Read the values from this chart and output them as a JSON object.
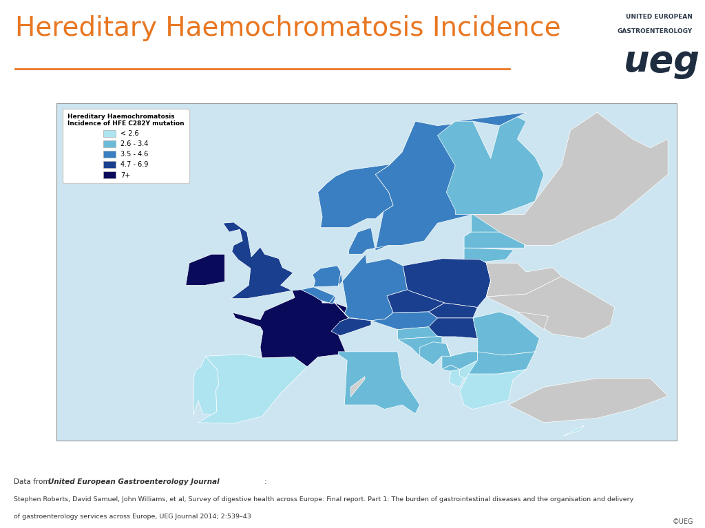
{
  "title": "Hereditary Haemochromatosis Incidence",
  "title_color": "#E87722",
  "title_fontsize": 28,
  "background_color": "#ffffff",
  "legend_title_line1": "Hereditary Haemochromatosis",
  "legend_title_line2": "Incidence of HFE C282Y mutation",
  "legend_labels": [
    "< 2.6",
    "2.6 - 3.4",
    "3.5 - 4.6",
    "4.7 - 6.9",
    "7+"
  ],
  "legend_colors": [
    "#aee4f0",
    "#6bbbd8",
    "#3a7fc1",
    "#1a3f8f",
    "#0a0a5a"
  ],
  "ueg_text_line1": "UNITED EUROPEAN",
  "ueg_text_line2": "GASTROENTEROLOGY",
  "ueg_logo_text": "ueg",
  "footer_prefix": "Data from ",
  "footer_journal": "United European Gastroenterology Journal",
  "footer_colon": ":",
  "footer_line2": "Stephen Roberts, David Samuel, John Williams, et al, Survey of digestive health across Europe: Final report. Part 1: The burden of gastrointestinal diseases and the organisation and delivery",
  "footer_line3": "of gastroenterology services across Europe, UEG Journal 2014; 2:539–43",
  "copyright_text": "©UEG",
  "country_colors": {
    "Ireland": "#0a0a5a",
    "United Kingdom": "#1a3f8f",
    "France": "#0a0a5a",
    "Norway": "#3a7fc1",
    "Sweden": "#3a7fc1",
    "Denmark": "#3a7fc1",
    "Finland": "#6bbbd8",
    "Iceland": "#6bbbd8",
    "Netherlands": "#3a7fc1",
    "Belgium": "#3a7fc1",
    "Luxembourg": "#3a7fc1",
    "Germany": "#3a7fc1",
    "Switzerland": "#1a3f8f",
    "Austria": "#3a7fc1",
    "Spain": "#aee4f0",
    "Portugal": "#aee4f0",
    "Italy": "#6bbbd8",
    "Greece": "#aee4f0",
    "Poland": "#1a3f8f",
    "Czech Republic": "#1a3f8f",
    "Czechia": "#1a3f8f",
    "Slovakia": "#1a3f8f",
    "Hungary": "#1a3f8f",
    "Romania": "#6bbbd8",
    "Bulgaria": "#6bbbd8",
    "Croatia": "#6bbbd8",
    "Slovenia": "#6bbbd8",
    "Bosnia and Herz.": "#6bbbd8",
    "Bosnia and Herzegovina": "#6bbbd8",
    "Serbia": "#6bbbd8",
    "Montenegro": "#6bbbd8",
    "Albania": "#aee4f0",
    "North Macedonia": "#aee4f0",
    "Macedonia": "#aee4f0",
    "Kosovo": "#aee4f0",
    "Estonia": "#6bbbd8",
    "Latvia": "#6bbbd8",
    "Lithuania": "#6bbbd8",
    "Belarus": "#c8c8c8",
    "Ukraine": "#c8c8c8",
    "Moldova": "#c8c8c8",
    "Russia": "#c8c8c8",
    "Turkey": "#c8c8c8",
    "Cyprus": "#aee4f0",
    "Malta": "#aee4f0"
  },
  "default_color": "#d0d0d0",
  "border_color": "#ffffff",
  "border_width": 0.5,
  "sea_color": "#cce5f0",
  "map_xlim": [
    -25,
    45
  ],
  "map_ylim": [
    34,
    72
  ]
}
